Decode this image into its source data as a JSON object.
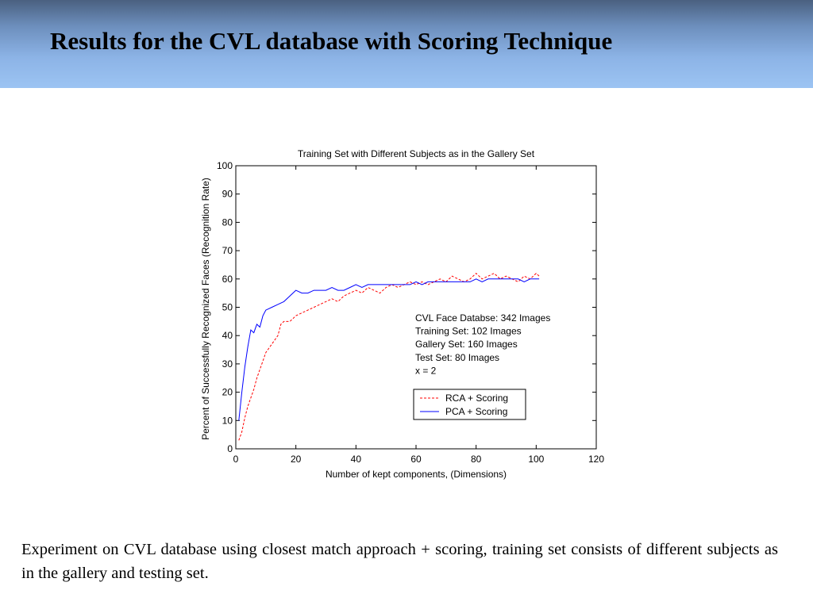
{
  "slide": {
    "title": "Results for the CVL database with Scoring Technique",
    "caption": "Experiment on CVL database using closest match approach + scoring, training set consists of different subjects as in the gallery and testing set."
  },
  "colors": {
    "rca": "#ff0000",
    "pca": "#0000ff"
  },
  "chart_data": {
    "type": "line",
    "title": "Training Set with Different Subjects as in the Gallery Set",
    "xlabel": "Number of kept components, (Dimensions)",
    "ylabel": "Percent of Successfully Recognized Faces (Recognition Rate)",
    "xlim": [
      0,
      120
    ],
    "ylim": [
      0,
      100
    ],
    "xticks": [
      0,
      20,
      40,
      60,
      80,
      100,
      120
    ],
    "yticks": [
      0,
      10,
      20,
      30,
      40,
      50,
      60,
      70,
      80,
      90,
      100
    ],
    "grid": false,
    "legend_position": "lower-right",
    "annotations": [
      "CVL Face Databse: 342 Images",
      "Training Set: 102 Images",
      "Gallery Set: 160 Images",
      "Test Set: 80 Images",
      "x = 2"
    ],
    "series": [
      {
        "name": "RCA + Scoring",
        "style": "dashed",
        "x": [
          1,
          2,
          3,
          4,
          5,
          6,
          7,
          8,
          9,
          10,
          12,
          14,
          15,
          16,
          18,
          20,
          22,
          24,
          26,
          28,
          30,
          32,
          34,
          36,
          38,
          40,
          42,
          44,
          46,
          48,
          50,
          52,
          54,
          56,
          58,
          60,
          62,
          64,
          66,
          68,
          70,
          72,
          74,
          76,
          78,
          80,
          82,
          84,
          86,
          88,
          90,
          92,
          94,
          96,
          98,
          100,
          101
        ],
        "y": [
          3,
          6,
          11,
          15,
          18,
          21,
          25,
          28,
          31,
          34,
          37,
          40,
          44,
          45,
          45,
          47,
          48,
          49,
          50,
          51,
          52,
          53,
          52,
          54,
          55,
          56,
          55,
          57,
          56,
          55,
          57,
          58,
          57,
          58,
          59,
          58,
          59,
          58,
          59,
          60,
          59,
          61,
          60,
          59,
          60,
          62,
          60,
          61,
          62,
          60,
          61,
          60,
          59,
          61,
          60,
          62,
          61
        ]
      },
      {
        "name": "PCA + Scoring",
        "style": "solid",
        "x": [
          1,
          2,
          3,
          4,
          5,
          6,
          7,
          8,
          9,
          10,
          12,
          14,
          16,
          18,
          20,
          22,
          24,
          26,
          28,
          30,
          32,
          34,
          36,
          38,
          40,
          42,
          44,
          46,
          48,
          50,
          52,
          54,
          56,
          58,
          60,
          62,
          64,
          66,
          68,
          70,
          72,
          74,
          76,
          78,
          80,
          82,
          84,
          86,
          88,
          90,
          92,
          94,
          96,
          98,
          100,
          101
        ],
        "y": [
          10,
          20,
          29,
          36,
          42,
          41,
          44,
          43,
          47,
          49,
          50,
          51,
          52,
          54,
          56,
          55,
          55,
          56,
          56,
          56,
          57,
          56,
          56,
          57,
          58,
          57,
          58,
          58,
          58,
          58,
          58,
          58,
          58,
          58,
          59,
          58,
          59,
          59,
          59,
          59,
          59,
          59,
          59,
          59,
          60,
          59,
          60,
          60,
          60,
          60,
          60,
          60,
          59,
          60,
          60,
          60
        ]
      }
    ]
  }
}
